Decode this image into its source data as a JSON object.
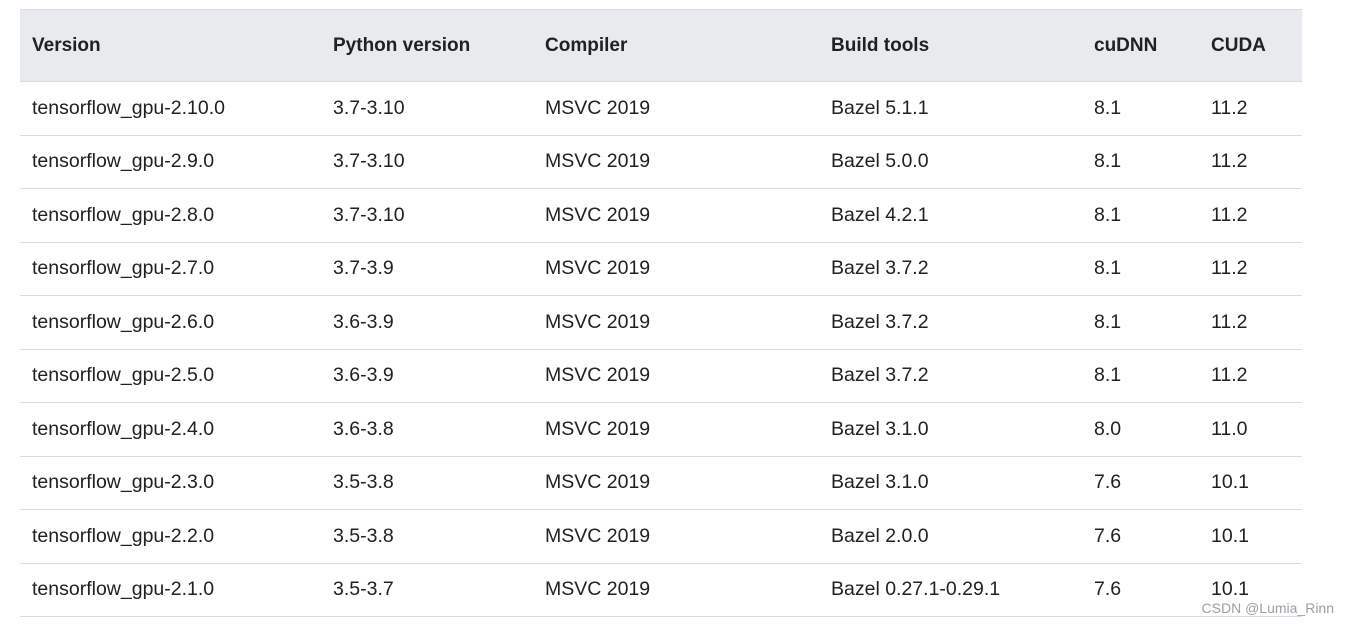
{
  "table": {
    "headers": [
      "Version",
      "Python version",
      "Compiler",
      "Build tools",
      "cuDNN",
      "CUDA"
    ],
    "rows": [
      [
        "tensorflow_gpu-2.10.0",
        "3.7-3.10",
        "MSVC 2019",
        "Bazel 5.1.1",
        "8.1",
        "11.2"
      ],
      [
        "tensorflow_gpu-2.9.0",
        "3.7-3.10",
        "MSVC 2019",
        "Bazel 5.0.0",
        "8.1",
        "11.2"
      ],
      [
        "tensorflow_gpu-2.8.0",
        "3.7-3.10",
        "MSVC 2019",
        "Bazel 4.2.1",
        "8.1",
        "11.2"
      ],
      [
        "tensorflow_gpu-2.7.0",
        "3.7-3.9",
        "MSVC 2019",
        "Bazel 3.7.2",
        "8.1",
        "11.2"
      ],
      [
        "tensorflow_gpu-2.6.0",
        "3.6-3.9",
        "MSVC 2019",
        "Bazel 3.7.2",
        "8.1",
        "11.2"
      ],
      [
        "tensorflow_gpu-2.5.0",
        "3.6-3.9",
        "MSVC 2019",
        "Bazel 3.7.2",
        "8.1",
        "11.2"
      ],
      [
        "tensorflow_gpu-2.4.0",
        "3.6-3.8",
        "MSVC 2019",
        "Bazel 3.1.0",
        "8.0",
        "11.0"
      ],
      [
        "tensorflow_gpu-2.3.0",
        "3.5-3.8",
        "MSVC 2019",
        "Bazel 3.1.0",
        "7.6",
        "10.1"
      ],
      [
        "tensorflow_gpu-2.2.0",
        "3.5-3.8",
        "MSVC 2019",
        "Bazel 2.0.0",
        "7.6",
        "10.1"
      ],
      [
        "tensorflow_gpu-2.1.0",
        "3.5-3.7",
        "MSVC 2019",
        "Bazel 0.27.1-0.29.1",
        "7.6",
        "10.1"
      ]
    ]
  },
  "watermark": "CSDN @Lumia_Rinn"
}
